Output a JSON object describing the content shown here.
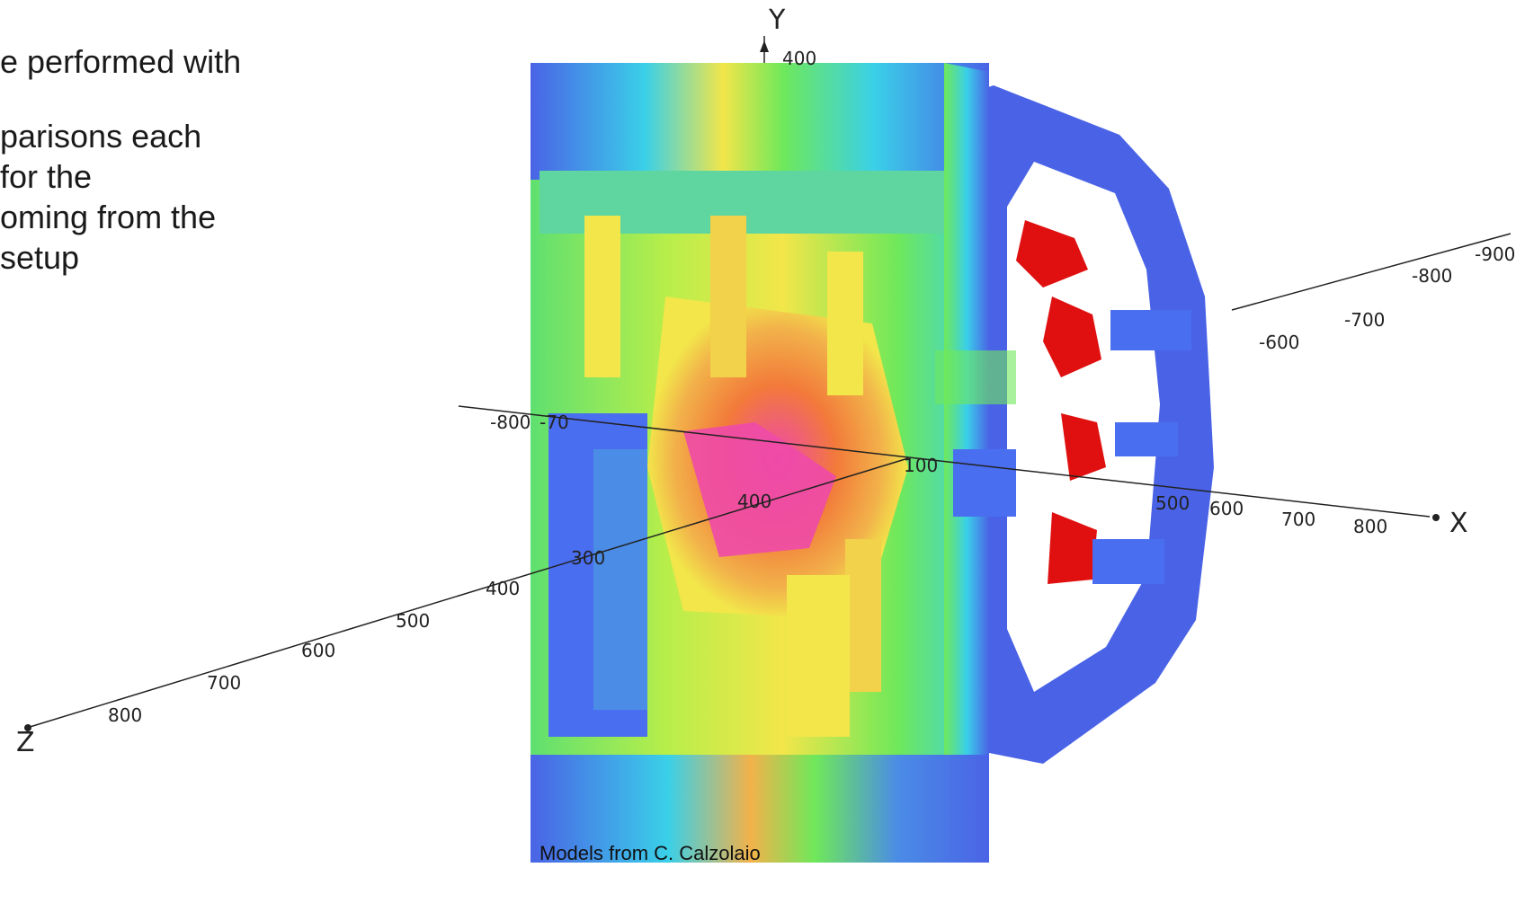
{
  "slide": {
    "text_lines": [
      "e performed with",
      "parisons each",
      " for the",
      "oming from the",
      "setup"
    ],
    "caption": "Models from C. Calzolaio"
  },
  "axes": {
    "y_name": "Y",
    "x_name": "X",
    "z_name": "Z",
    "y_tick": "400",
    "x_back_ticks": [
      "-600",
      "-700",
      "-800",
      "-900"
    ],
    "x_front_ticks": [
      "500",
      "600",
      "700",
      "800"
    ],
    "x_left_ticks": [
      "-800",
      "-70"
    ],
    "x_center_label": "100",
    "z_ticks": [
      "300",
      "400",
      "500",
      "600",
      "700",
      "800"
    ],
    "center_tick": "400"
  },
  "colors": {
    "field_low": "#4a63e6",
    "field_mid_low": "#3ad0e8",
    "field_mid": "#6fe85a",
    "field_mid_high": "#f2e64a",
    "field_high": "#f27a3a",
    "field_peak": "#ee4aa8",
    "coil_red": "#e01010"
  }
}
